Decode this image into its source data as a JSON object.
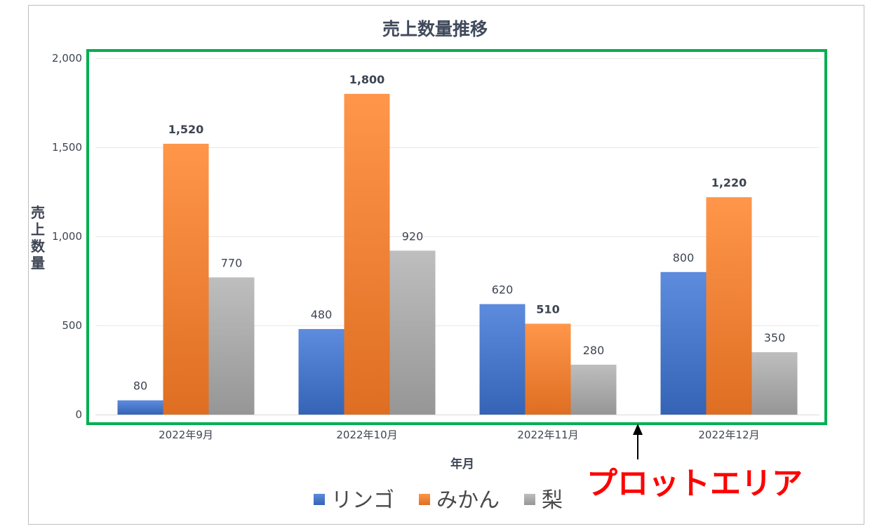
{
  "chart_data": {
    "type": "bar",
    "title": "売上数量推移",
    "xlabel": "年月",
    "ylabel": "売上数量",
    "categories": [
      "2022年9月",
      "2022年10月",
      "2022年11月",
      "2022年12月"
    ],
    "ylim": [
      0,
      2000
    ],
    "yticks": [
      0,
      500,
      1000,
      1500,
      2000
    ],
    "ytick_labels": [
      "0",
      "500",
      "1,000",
      "1,500",
      "2,000"
    ],
    "grid": true,
    "legend_position": "bottom",
    "series": [
      {
        "name": "リンゴ",
        "color": "#4472c4",
        "values": [
          80,
          480,
          620,
          800
        ],
        "labels": [
          "80",
          "480",
          "620",
          "800"
        ],
        "bold": [
          false,
          false,
          false,
          false
        ]
      },
      {
        "name": "みかん",
        "color": "#ed7d31",
        "values": [
          1520,
          1800,
          510,
          1220
        ],
        "labels": [
          "1,520",
          "1,800",
          "510",
          "1,220"
        ],
        "bold": [
          true,
          true,
          true,
          true
        ]
      },
      {
        "name": "梨",
        "color": "#a5a5a5",
        "values": [
          770,
          920,
          280,
          350
        ],
        "labels": [
          "770",
          "920",
          "280",
          "350"
        ],
        "bold": [
          false,
          false,
          false,
          false
        ]
      }
    ],
    "annotation": {
      "text": "プロットエリア",
      "color": "#ff0000",
      "highlight_color": "#00b050"
    }
  }
}
